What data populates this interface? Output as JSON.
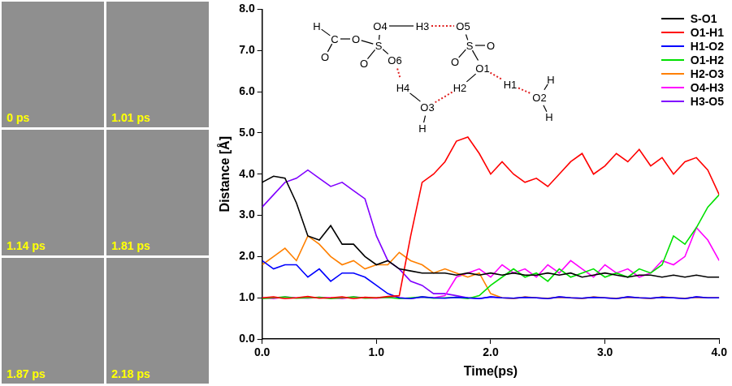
{
  "chart_data": {
    "type": "line",
    "x_label": "Time(ps)",
    "y_label": "Distance [Å]",
    "x": [
      0,
      0.1,
      0.2,
      0.3,
      0.4,
      0.5,
      0.6,
      0.7,
      0.8,
      0.9,
      1.0,
      1.1,
      1.2,
      1.3,
      1.4,
      1.5,
      1.6,
      1.7,
      1.8,
      1.9,
      2.0,
      2.1,
      2.2,
      2.3,
      2.4,
      2.5,
      2.6,
      2.7,
      2.8,
      2.9,
      3.0,
      3.1,
      3.2,
      3.3,
      3.4,
      3.5,
      3.6,
      3.7,
      3.8,
      3.9,
      4.0
    ],
    "xlim": [
      0,
      4
    ],
    "xticks": [
      {
        "value": 0,
        "label": "0.0"
      },
      {
        "value": 1,
        "label": "1.0"
      },
      {
        "value": 2,
        "label": "2.0"
      },
      {
        "value": 3,
        "label": "3.0"
      },
      {
        "value": 4,
        "label": "4.0"
      }
    ],
    "ylim": [
      0,
      8
    ],
    "yticks": [
      {
        "value": 0,
        "label": "0.0"
      },
      {
        "value": 1,
        "label": "1.0"
      },
      {
        "value": 2,
        "label": "2.0"
      },
      {
        "value": 3,
        "label": "3.0"
      },
      {
        "value": 4,
        "label": "4.0"
      },
      {
        "value": 5,
        "label": "5.0"
      },
      {
        "value": 6,
        "label": "6.0"
      },
      {
        "value": 7,
        "label": "7.0"
      },
      {
        "value": 8,
        "label": "8.0"
      }
    ],
    "grid": false,
    "legend": "top right",
    "series": [
      {
        "name": "S-O1",
        "color": "#000000",
        "values": [
          3.8,
          3.95,
          3.9,
          3.3,
          2.5,
          2.4,
          2.75,
          2.3,
          2.3,
          2.0,
          1.8,
          1.9,
          1.7,
          1.65,
          1.6,
          1.6,
          1.6,
          1.55,
          1.6,
          1.55,
          1.6,
          1.55,
          1.6,
          1.55,
          1.55,
          1.6,
          1.55,
          1.6,
          1.5,
          1.55,
          1.6,
          1.55,
          1.5,
          1.55,
          1.55,
          1.5,
          1.55,
          1.5,
          1.55,
          1.5,
          1.5
        ]
      },
      {
        "name": "O1-H1",
        "color": "#ff0000",
        "values": [
          1.0,
          1.02,
          0.98,
          1.0,
          1.03,
          0.99,
          1.0,
          1.02,
          0.98,
          1.01,
          1.0,
          1.03,
          1.05,
          2.5,
          3.8,
          4.0,
          4.3,
          4.8,
          4.9,
          4.5,
          4.0,
          4.3,
          4.0,
          3.8,
          3.9,
          3.7,
          4.0,
          4.3,
          4.5,
          4.0,
          4.2,
          4.5,
          4.3,
          4.6,
          4.2,
          4.4,
          4.0,
          4.3,
          4.4,
          4.1,
          3.5
        ]
      },
      {
        "name": "H1-O2",
        "color": "#0000ff",
        "values": [
          1.9,
          1.7,
          1.8,
          1.8,
          1.5,
          1.7,
          1.4,
          1.6,
          1.6,
          1.5,
          1.3,
          1.1,
          1.0,
          0.98,
          1.02,
          1.0,
          0.99,
          1.01,
          1.0,
          0.98,
          1.02,
          1.0,
          0.99,
          1.01,
          1.0,
          0.98,
          1.02,
          1.0,
          0.99,
          1.01,
          1.0,
          0.98,
          1.02,
          1.0,
          0.99,
          1.01,
          1.0,
          0.98,
          1.02,
          1.0,
          1.0
        ]
      },
      {
        "name": "O1-H2",
        "color": "#00e000",
        "values": [
          0.98,
          1.0,
          1.02,
          0.99,
          1.0,
          1.01,
          0.98,
          1.0,
          1.02,
          0.99,
          1.0,
          1.01,
          0.98,
          1.0,
          1.02,
          0.99,
          1.0,
          1.01,
          0.98,
          1.05,
          1.3,
          1.5,
          1.7,
          1.5,
          1.6,
          1.4,
          1.7,
          1.5,
          1.6,
          1.7,
          1.5,
          1.6,
          1.5,
          1.7,
          1.6,
          1.8,
          2.5,
          2.3,
          2.7,
          3.2,
          3.5
        ]
      },
      {
        "name": "H2-O3",
        "color": "#ff8000",
        "values": [
          1.8,
          2.0,
          2.2,
          1.9,
          2.5,
          2.3,
          2.0,
          1.8,
          1.9,
          1.7,
          1.8,
          1.8,
          2.1,
          1.9,
          1.8,
          1.6,
          1.7,
          1.6,
          1.5,
          1.6,
          1.1,
          1.0,
          0.98,
          1.02,
          1.0,
          0.99,
          1.01,
          1.0,
          0.98,
          1.02,
          1.0,
          0.99,
          1.01,
          1.0,
          0.98,
          1.02,
          1.0,
          0.99,
          1.01,
          1.0,
          1.0
        ]
      },
      {
        "name": "O4-H3",
        "color": "#ff00ff",
        "values": [
          1.0,
          0.98,
          1.02,
          1.0,
          0.99,
          1.01,
          1.0,
          0.98,
          1.02,
          1.0,
          0.99,
          1.01,
          1.0,
          0.98,
          1.02,
          1.0,
          1.05,
          1.5,
          1.6,
          1.7,
          1.5,
          1.8,
          1.6,
          1.7,
          1.5,
          1.8,
          1.6,
          1.9,
          1.7,
          1.5,
          1.8,
          1.6,
          1.7,
          1.5,
          1.6,
          1.9,
          1.8,
          2.0,
          2.7,
          2.4,
          1.9
        ]
      },
      {
        "name": "H3-O5",
        "color": "#8000ff",
        "values": [
          3.2,
          3.5,
          3.8,
          3.9,
          4.1,
          3.9,
          3.7,
          3.8,
          3.6,
          3.4,
          2.5,
          1.9,
          1.7,
          1.4,
          1.3,
          1.1,
          1.1,
          1.05,
          1.0,
          0.98,
          1.02,
          1.0,
          0.99,
          1.01,
          1.0,
          0.98,
          1.02,
          1.0,
          0.99,
          1.01,
          1.0,
          0.98,
          1.02,
          1.0,
          0.99,
          1.01,
          1.0,
          0.98,
          1.02,
          1.0,
          1.0
        ]
      }
    ]
  },
  "snapshots": {
    "labels": [
      "0 ps",
      "1.01 ps",
      "1.14 ps",
      "1.81 ps",
      "1.87 ps",
      "2.18 ps"
    ]
  },
  "inset": {
    "atoms": [
      "H",
      "C",
      "O",
      "O",
      "S",
      "O4",
      "O6",
      "O",
      "H3",
      "O5",
      "S",
      "O",
      "O",
      "O1",
      "H2",
      "H1",
      "O2",
      "H",
      "H",
      "H4",
      "O3",
      "H"
    ]
  }
}
